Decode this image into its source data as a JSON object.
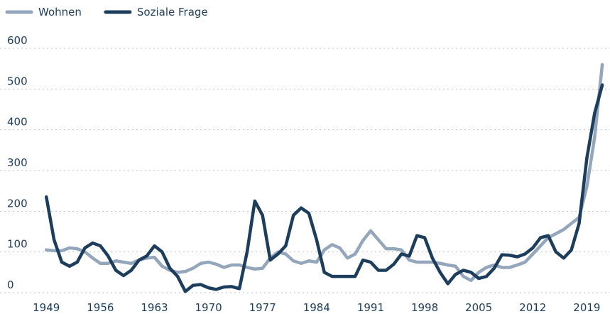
{
  "chart_data": {
    "type": "line",
    "x": [
      1949,
      1950,
      1951,
      1952,
      1953,
      1954,
      1955,
      1956,
      1957,
      1958,
      1959,
      1960,
      1961,
      1962,
      1963,
      1964,
      1965,
      1966,
      1967,
      1968,
      1969,
      1970,
      1971,
      1972,
      1973,
      1974,
      1975,
      1976,
      1977,
      1978,
      1979,
      1980,
      1981,
      1982,
      1983,
      1984,
      1985,
      1986,
      1987,
      1988,
      1989,
      1990,
      1991,
      1992,
      1993,
      1994,
      1995,
      1996,
      1997,
      1998,
      1999,
      2000,
      2001,
      2002,
      2003,
      2004,
      2005,
      2006,
      2007,
      2008,
      2009,
      2010,
      2011,
      2012,
      2013,
      2014,
      2015,
      2016,
      2017,
      2018,
      2019,
      2020,
      2021
    ],
    "series": [
      {
        "name": "Wohnen",
        "color": "#94a6bb",
        "values": [
          105,
          103,
          103,
          110,
          108,
          100,
          85,
          72,
          72,
          78,
          75,
          72,
          80,
          85,
          87,
          65,
          55,
          50,
          52,
          60,
          72,
          75,
          70,
          62,
          68,
          68,
          62,
          58,
          60,
          85,
          100,
          95,
          78,
          72,
          78,
          75,
          105,
          118,
          110,
          85,
          95,
          128,
          152,
          130,
          108,
          108,
          105,
          80,
          75,
          75,
          75,
          72,
          68,
          65,
          40,
          30,
          50,
          62,
          68,
          62,
          62,
          68,
          75,
          95,
          115,
          135,
          145,
          155,
          170,
          185,
          260,
          380,
          560
        ]
      },
      {
        "name": "Soziale Frage",
        "color": "#1d3d5c",
        "values": [
          235,
          130,
          75,
          65,
          75,
          110,
          122,
          115,
          90,
          55,
          42,
          55,
          80,
          90,
          115,
          100,
          60,
          40,
          3,
          18,
          20,
          12,
          8,
          14,
          15,
          10,
          100,
          225,
          190,
          80,
          95,
          115,
          190,
          208,
          195,
          130,
          50,
          40,
          40,
          40,
          40,
          80,
          75,
          55,
          55,
          70,
          95,
          90,
          140,
          135,
          85,
          50,
          22,
          45,
          55,
          50,
          35,
          40,
          60,
          93,
          92,
          88,
          95,
          110,
          135,
          140,
          100,
          85,
          105,
          170,
          330,
          440,
          510
        ]
      }
    ],
    "xlim": [
      1943,
      2022
    ],
    "xticks": [
      1949,
      1956,
      1963,
      1970,
      1977,
      1984,
      1991,
      1998,
      2005,
      2012,
      2019
    ],
    "ylim": [
      0,
      600
    ],
    "yticks": [
      0,
      100,
      200,
      300,
      400,
      500,
      600
    ],
    "grid": true
  }
}
